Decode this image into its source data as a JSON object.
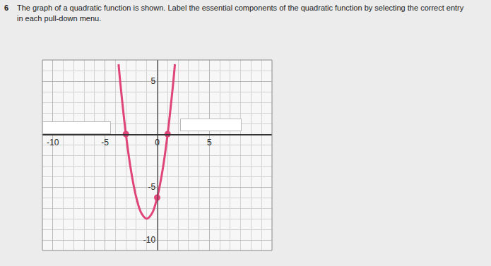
{
  "question": {
    "number": "6",
    "text": "The graph of a quadratic function is shown. Label the essential components of the quadratic function by selecting the correct entry in each pull-down menu."
  },
  "chart_data": {
    "type": "line",
    "xlim": [
      -11,
      11
    ],
    "ylim": [
      -11,
      7
    ],
    "xticks": [
      -10,
      -5,
      0,
      5
    ],
    "yticks": [
      -10,
      -5,
      5
    ],
    "grid": true,
    "series": [
      {
        "type": "line",
        "color": "#e0457a",
        "x": [
          -3.7,
          -3.5,
          -3,
          -2.5,
          -2,
          -1.5,
          -1,
          -0.5,
          0,
          0.5,
          1,
          1.5,
          1.7
        ],
        "values": [
          6.6,
          4.5,
          0,
          -3.5,
          -6,
          -7.5,
          -8,
          -7.5,
          -6,
          -3.5,
          0,
          4.5,
          6.6
        ]
      },
      {
        "type": "scatter",
        "marker": "circle",
        "color": "#e0457a",
        "x": [
          -3,
          1,
          0
        ],
        "values": [
          0,
          0,
          -6
        ]
      }
    ]
  }
}
